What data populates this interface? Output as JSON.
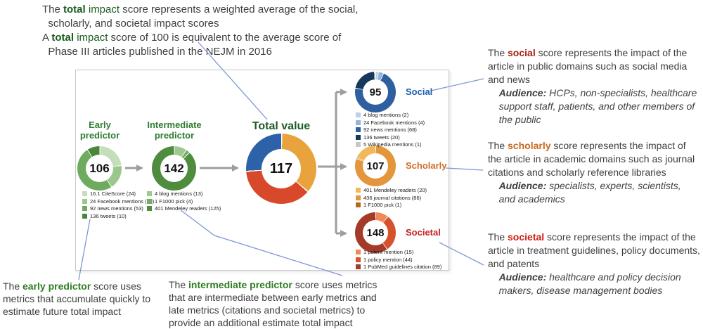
{
  "colors": {
    "total_keyword": "#1c5a1e",
    "predictor_keyword": "#2e7d22",
    "predictor_heading": "#2e7d32",
    "total_heading": "#1e5b25",
    "social_keyword": "#a82014",
    "scholarly_keyword": "#c66a1f",
    "societal_keyword": "#cf1d12",
    "social_label": "#1d5fae",
    "scholarly_label": "#cf6c2a",
    "societal_label": "#c42220",
    "arrow_gray": "#9e9e9e",
    "callout_blue": "#7d97d6",
    "box_border": "#c9c9c9"
  },
  "notes": {
    "total": {
      "runs": [
        {
          "t": "The "
        },
        {
          "t": "total",
          "b": true,
          "c": "total_keyword"
        },
        {
          "t": " impact",
          "c": "total_keyword"
        },
        {
          "t": " score represents a weighted average of the social,\n  scholarly, and societal impact scores\n"
        },
        {
          "t": "A "
        },
        {
          "t": "total",
          "b": true,
          "c": "total_keyword"
        },
        {
          "t": " impact",
          "c": "total_keyword"
        },
        {
          "t": " score of 100 is equivalent to the average score of\n  Phase III articles published in the NEJM in 2016"
        }
      ]
    },
    "social": {
      "runs": [
        {
          "t": "The "
        },
        {
          "t": "social",
          "b": true,
          "c": "social_keyword"
        },
        {
          "t": " score represents the impact of the\narticle in public domains such as social media\nand news\n"
        },
        {
          "t": "    "
        },
        {
          "t": "Audience:",
          "b": true,
          "i": true
        },
        {
          "t": " HCPs, non-specialists, healthcare\n    support staff, patients, and other members of\n    the public",
          "i": true
        }
      ]
    },
    "scholarly": {
      "runs": [
        {
          "t": "The "
        },
        {
          "t": "scholarly",
          "b": true,
          "c": "scholarly_keyword"
        },
        {
          "t": " score represents the impact of\nthe article in academic domains such as journal\ncitations and scholarly reference libraries\n"
        },
        {
          "t": "    "
        },
        {
          "t": "Audience:",
          "b": true,
          "i": true
        },
        {
          "t": " specialists, experts, scientists,\n    and academics",
          "i": true
        }
      ]
    },
    "societal": {
      "runs": [
        {
          "t": "The "
        },
        {
          "t": "societal",
          "b": true,
          "c": "societal_keyword"
        },
        {
          "t": " score represents the impact of the\narticle in treatment guidelines, policy documents,\nand patents\n"
        },
        {
          "t": "    "
        },
        {
          "t": "Audience:",
          "b": true,
          "i": true
        },
        {
          "t": " healthcare and policy decision\n    makers, disease management bodies",
          "i": true
        }
      ]
    },
    "early": {
      "runs": [
        {
          "t": "The "
        },
        {
          "t": "early predictor",
          "b": true,
          "c": "predictor_keyword"
        },
        {
          "t": " score uses\nmetrics that accumulate quickly to\nestimate future total impact"
        }
      ]
    },
    "intermediate": {
      "runs": [
        {
          "t": "The "
        },
        {
          "t": "intermediate predictor",
          "b": true,
          "c": "predictor_keyword"
        },
        {
          "t": " score uses metrics\nthat are intermediate between early metrics and\nlate metrics (citations and societal metrics) to\nprovide an additional estimate total impact"
        }
      ]
    }
  },
  "chart_data": [
    {
      "id": "early",
      "type": "donut",
      "title": "Early\npredictor",
      "center_value": "106",
      "segments": [
        {
          "label": "16.1 CiteScore (24)",
          "value": 24,
          "color": "#c5deba"
        },
        {
          "label": "24 Facebook mentions (19)",
          "value": 19,
          "color": "#9bc78c"
        },
        {
          "label": "92 news mentions (53)",
          "value": 53,
          "color": "#6fab5e"
        },
        {
          "label": "136 tweets (10)",
          "value": 10,
          "color": "#4a8639"
        }
      ]
    },
    {
      "id": "intermediate",
      "type": "donut",
      "title": "Intermediate\npredictor",
      "center_value": "142",
      "segments": [
        {
          "label": "4 blog mentions (13)",
          "value": 13,
          "color": "#a0c991"
        },
        {
          "label": "1 F1000 pick (4)",
          "value": 4,
          "color": "#74ad63"
        },
        {
          "label": "401 Mendeley readers (125)",
          "value": 125,
          "color": "#4f8c3e"
        }
      ]
    },
    {
      "id": "total",
      "type": "donut",
      "title": "Total value",
      "center_value": "117",
      "arc_order": [
        1,
        2,
        0
      ],
      "segments": [
        {
          "label": "Social",
          "value": 26.5,
          "color": "#2d61a8"
        },
        {
          "label": "Scholarly",
          "value": 36,
          "color": "#e8a33c"
        },
        {
          "label": "Societal",
          "value": 37.5,
          "color": "#d8482a"
        }
      ]
    },
    {
      "id": "social",
      "type": "donut",
      "title": "Social",
      "center_value": "95",
      "segments": [
        {
          "label": "4 blog mentions (2)",
          "value": 2,
          "color": "#bcd0ec"
        },
        {
          "label": "24 Facebook mentions (4)",
          "value": 4,
          "color": "#93b3dc"
        },
        {
          "label": "92 news mentions (68)",
          "value": 68,
          "color": "#2e5f9f"
        },
        {
          "label": "136 tweets (20)",
          "value": 20,
          "color": "#17375d"
        },
        {
          "label": "5 Wikipedia mentions (1)",
          "value": 1,
          "color": "#c7c7c7"
        }
      ]
    },
    {
      "id": "scholarly",
      "type": "donut",
      "title": "Scholarly",
      "center_value": "107",
      "arc_order": [
        1,
        2,
        0
      ],
      "segments": [
        {
          "label": "401 Mendeley readers (20)",
          "value": 20,
          "color": "#f2b95b"
        },
        {
          "label": "436 journal citations (86)",
          "value": 86,
          "color": "#e3963b"
        },
        {
          "label": "1 F1000 pick (1)",
          "value": 1,
          "color": "#b06c1c"
        }
      ]
    },
    {
      "id": "societal",
      "type": "donut",
      "title": "Societal",
      "center_value": "148",
      "segments": [
        {
          "label": "1 patent mention (15)",
          "value": 15,
          "color": "#ef8a58"
        },
        {
          "label": "1 policy mention (44)",
          "value": 44,
          "color": "#d5522d"
        },
        {
          "label": "1 PubMed guidelines citation (89)",
          "value": 89,
          "color": "#a33b28"
        }
      ]
    }
  ]
}
